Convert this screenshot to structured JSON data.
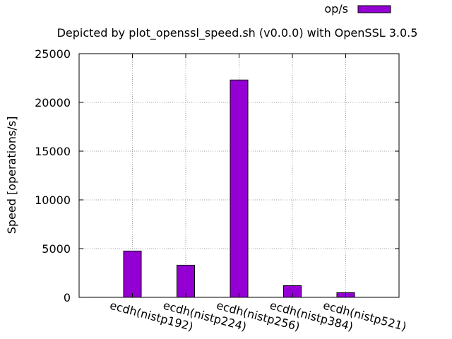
{
  "chart_data": {
    "type": "bar",
    "title": "Depicted by plot_openssl_speed.sh (v0.0.0) with OpenSSL 3.0.5",
    "xlabel": "",
    "ylabel": "Speed [operations/s]",
    "categories": [
      "ecdh(nistp192)",
      "ecdh(nistp224)",
      "ecdh(nistp256)",
      "ecdh(nistp384)",
      "ecdh(nistp521)"
    ],
    "series": [
      {
        "name": "op/s",
        "values": [
          4750,
          3300,
          22300,
          1200,
          480
        ],
        "color": "#9400d3"
      }
    ],
    "ylim": [
      0,
      25000
    ],
    "yticks": [
      0,
      5000,
      10000,
      15000,
      20000,
      25000
    ],
    "ytick_labels": [
      "0",
      "5000",
      "10000",
      "15000",
      "20000",
      "25000"
    ],
    "grid": true,
    "legend_position": "top-right"
  }
}
